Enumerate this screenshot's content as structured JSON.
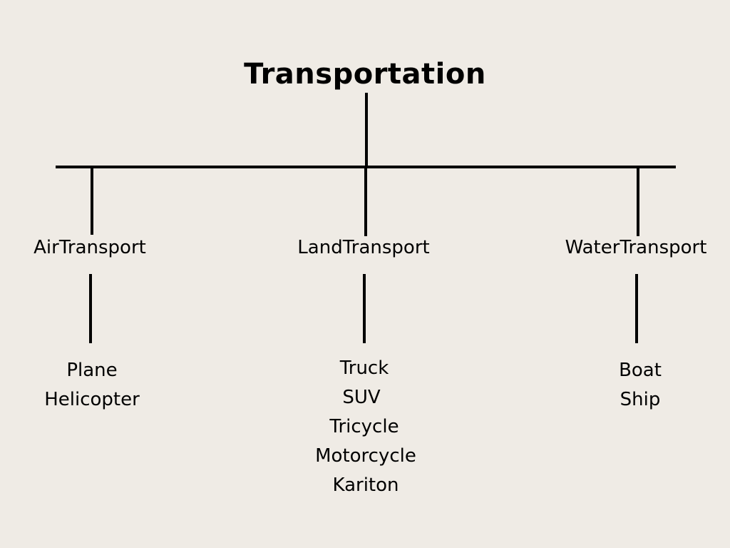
{
  "diagram": {
    "background_color": "#efebe5",
    "line_color": "#000000",
    "root": {
      "label": "Transportation"
    },
    "branches": [
      {
        "label": "AirTransport",
        "items": [
          "Plane",
          "Helicopter"
        ]
      },
      {
        "label": "LandTransport",
        "items": [
          "Truck",
          "SUV",
          "Tricycle",
          "Motorcycle",
          "Kariton"
        ]
      },
      {
        "label": "WaterTransport",
        "items": [
          "Boat",
          "Ship"
        ]
      }
    ]
  }
}
